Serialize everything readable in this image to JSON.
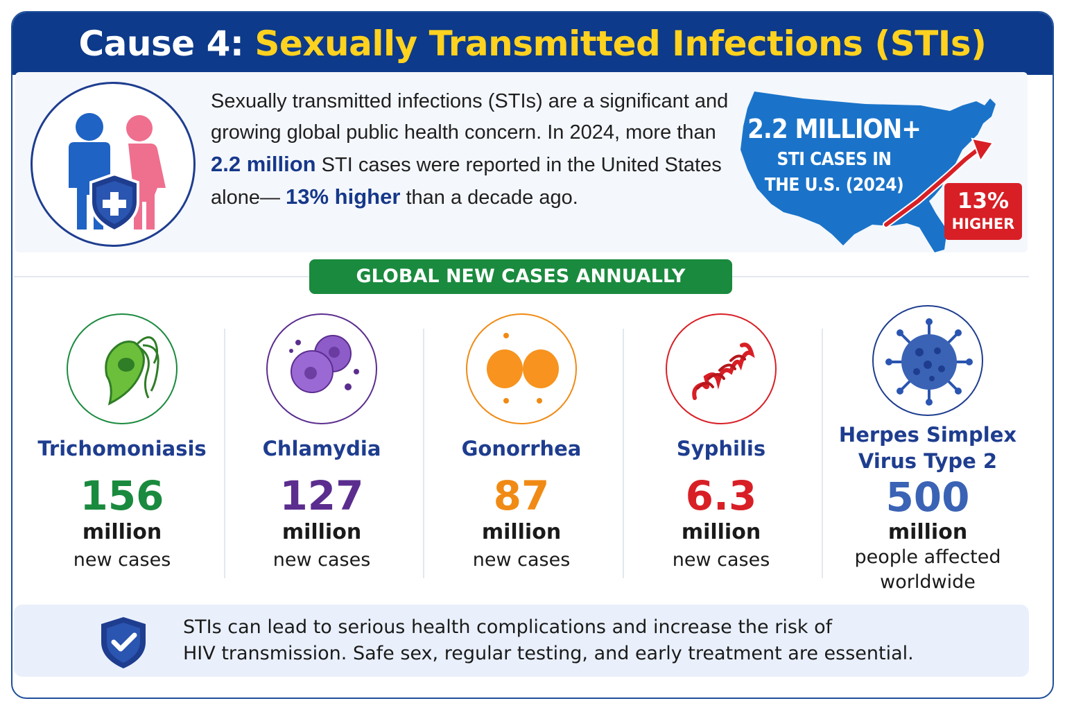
{
  "header": {
    "lead": "Cause 4:",
    "title": "Sexually Transmitted Infections (STIs)"
  },
  "intro": {
    "part1": "Sexually transmitted infections (STIs) are a significant and growing global public health concern. In 2024, more than ",
    "highlight1": "2.2 million",
    "part2": " STI cases were reported in the United States alone— ",
    "highlight2": "13% higher",
    "part3": " than a decade ago."
  },
  "us_figure": {
    "value": "2.2 MILLION+",
    "line1": "STI CASES IN",
    "line2": "THE U.S. (2024)",
    "badge_pct": "13%",
    "badge_label": "HIGHER"
  },
  "section_title": "GLOBAL NEW CASES ANNUALLY",
  "stats": [
    {
      "name": "Trichomoniasis",
      "number": "156",
      "unit": "million",
      "desc": "new cases",
      "color": "#1a8a3e"
    },
    {
      "name": "Chlamydia",
      "number": "127",
      "unit": "million",
      "desc": "new cases",
      "color": "#5b2d8e"
    },
    {
      "name": "Gonorrhea",
      "number": "87",
      "unit": "million",
      "desc": "new cases",
      "color": "#f08a14"
    },
    {
      "name": "Syphilis",
      "number": "6.3",
      "unit": "million",
      "desc": "new cases",
      "color": "#d81f26"
    },
    {
      "name_line1": "Herpes Simplex",
      "name_line2": "Virus Type 2",
      "number": "500",
      "unit": "million",
      "desc_line1": "people affected",
      "desc_line2": "worldwide",
      "color": "#3a63b5"
    }
  ],
  "icons": {
    "people": "people-shield-icon",
    "map": "us-map-icon",
    "trichomoniasis": "trichomonas-parasite-icon",
    "chlamydia": "chlamydia-bacteria-icon",
    "gonorrhea": "diplococcus-icon",
    "syphilis": "spirochete-icon",
    "herpes": "virus-icon",
    "note": "shield-check-icon"
  },
  "note": {
    "line1": "STIs can lead to serious health complications and increase the risk of",
    "line2": "HIV transmission. Safe sex, regular testing, and early treatment are essential."
  }
}
